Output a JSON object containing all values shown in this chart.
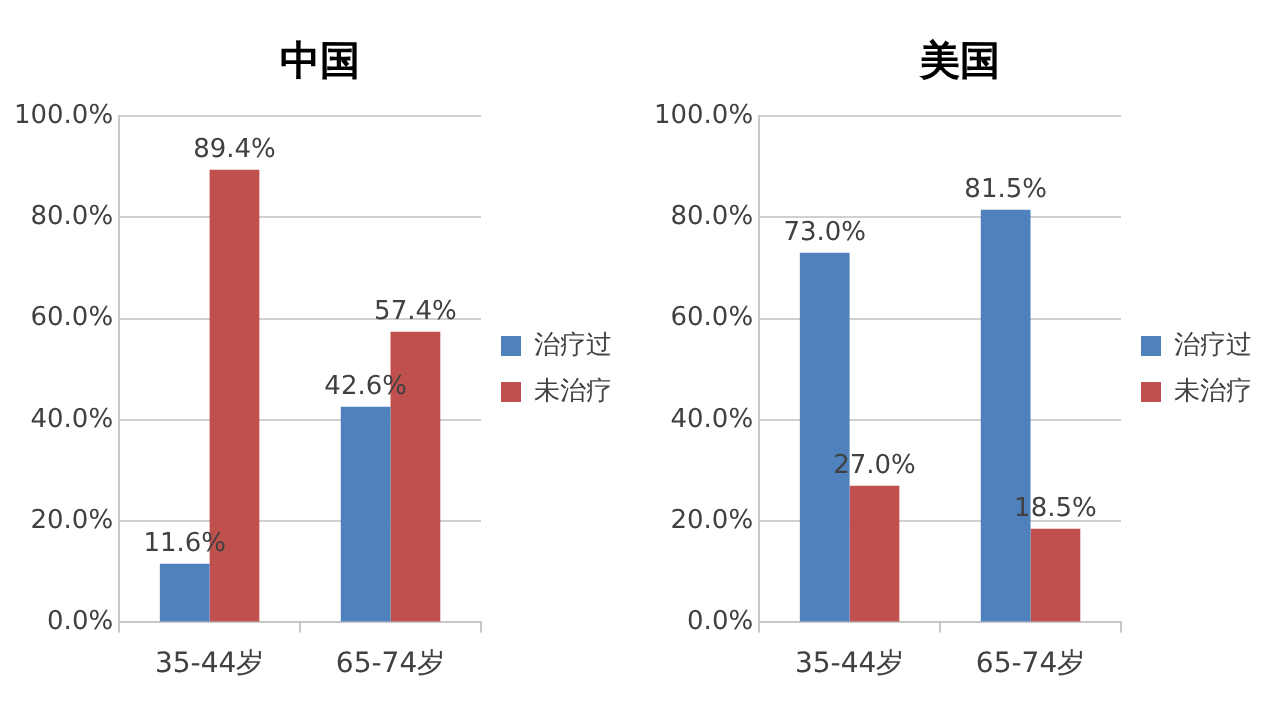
{
  "chart_data": [
    {
      "type": "bar",
      "title": "中国",
      "categories": [
        "35-44岁",
        "65-74岁"
      ],
      "series": [
        {
          "name": "治疗过",
          "color": "#4f81bd",
          "values": [
            11.6,
            42.6
          ],
          "value_labels": [
            "11.6%",
            "42.6%"
          ]
        },
        {
          "name": "未治疗",
          "color": "#c0504d",
          "values": [
            89.4,
            57.4
          ],
          "value_labels": [
            "89.4%",
            "57.4%"
          ]
        }
      ],
      "ylim": [
        0,
        100
      ],
      "yticks": [
        {
          "value": 0,
          "label": "0.0%"
        },
        {
          "value": 20,
          "label": "20.0%"
        },
        {
          "value": 40,
          "label": "40.0%"
        },
        {
          "value": 60,
          "label": "60.0%"
        },
        {
          "value": 80,
          "label": "80.0%"
        },
        {
          "value": 100,
          "label": "100.0%"
        }
      ],
      "grid": "y",
      "legend": "right"
    },
    {
      "type": "bar",
      "title": "美国",
      "categories": [
        "35-44岁",
        "65-74岁"
      ],
      "series": [
        {
          "name": "治疗过",
          "color": "#4f81bd",
          "values": [
            73.0,
            81.5
          ],
          "value_labels": [
            "73.0%",
            "81.5%"
          ]
        },
        {
          "name": "未治疗",
          "color": "#c0504d",
          "values": [
            27.0,
            18.5
          ],
          "value_labels": [
            "27.0%",
            "18.5%"
          ]
        }
      ],
      "ylim": [
        0,
        100
      ],
      "yticks": [
        {
          "value": 0,
          "label": "0.0%"
        },
        {
          "value": 20,
          "label": "20.0%"
        },
        {
          "value": 40,
          "label": "40.0%"
        },
        {
          "value": 60,
          "label": "60.0%"
        },
        {
          "value": 80,
          "label": "80.0%"
        },
        {
          "value": 100,
          "label": "100.0%"
        }
      ],
      "grid": "y",
      "legend": "right"
    }
  ]
}
